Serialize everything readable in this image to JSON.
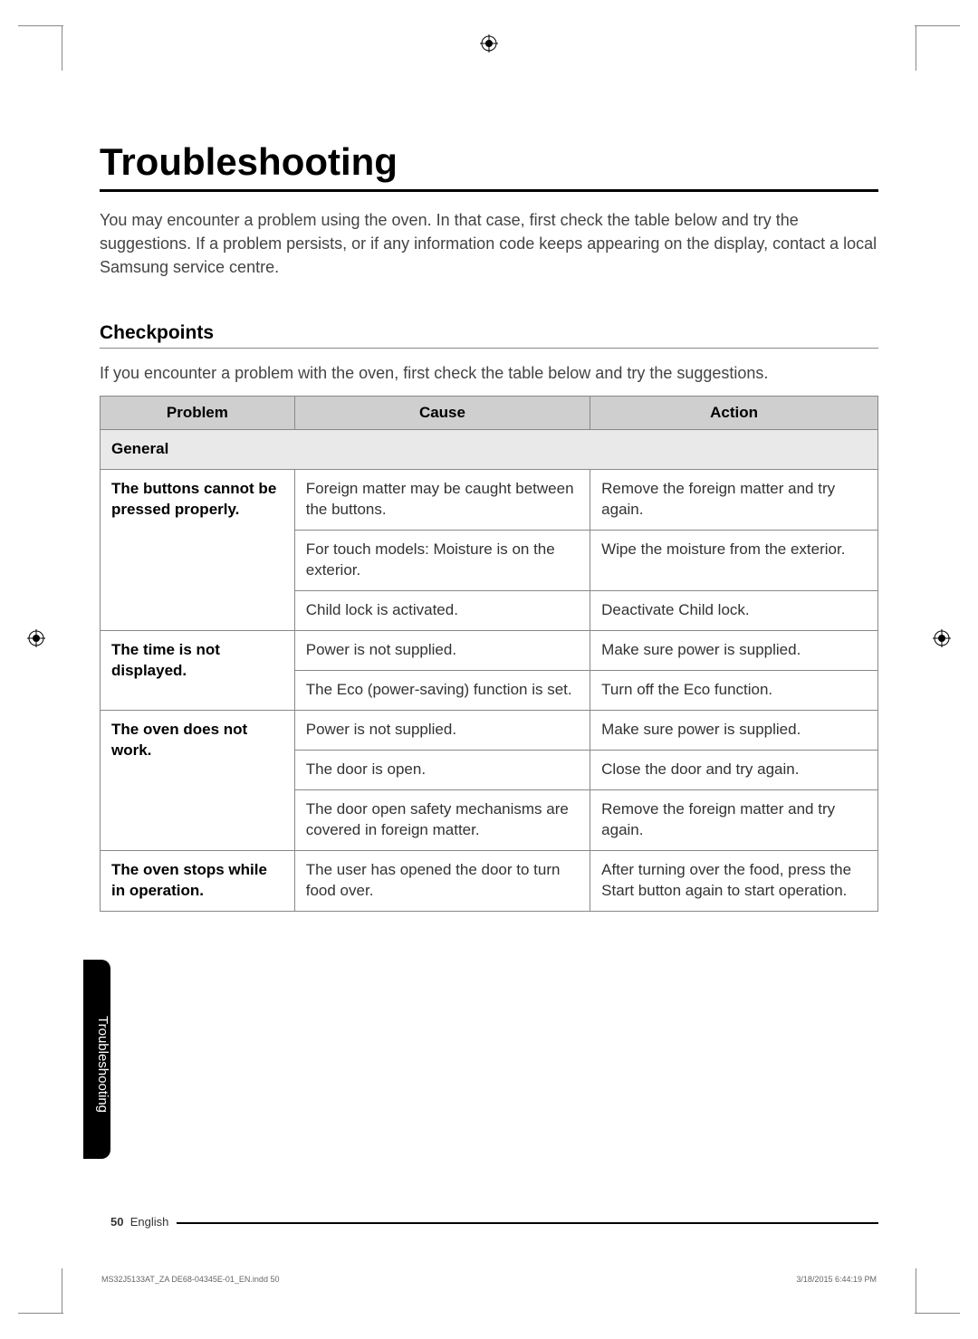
{
  "title": "Troubleshooting",
  "intro": "You may encounter a problem using the oven. In that case, first check the table below and try the suggestions. If a problem persists, or if any information code keeps appearing on the display, contact a local Samsung service centre.",
  "section_heading": "Checkpoints",
  "subintro": "If you encounter a problem with the oven, first check the table below and try the suggestions.",
  "table": {
    "columns": [
      "Problem",
      "Cause",
      "Action"
    ],
    "col_widths_pct": [
      25,
      38,
      37
    ],
    "header_bg": "#cfcfcf",
    "section_bg": "#e9e9e9",
    "border_color": "#888888",
    "body_rows": [
      {
        "type": "section",
        "label": "General"
      },
      {
        "type": "row",
        "problem": "The buttons cannot be pressed properly.",
        "problem_rowspan": 3,
        "cause": "Foreign matter may be caught between the buttons.",
        "action": "Remove the foreign matter and try again."
      },
      {
        "type": "row",
        "cause": "For touch models: Moisture is on the exterior.",
        "action": "Wipe the moisture from the exterior."
      },
      {
        "type": "row",
        "cause": "Child lock is activated.",
        "action": "Deactivate Child lock."
      },
      {
        "type": "row",
        "problem": "The time is not displayed.",
        "problem_rowspan": 2,
        "cause": "Power is not supplied.",
        "action": "Make sure power is supplied."
      },
      {
        "type": "row",
        "cause": "The Eco (power-saving) function is set.",
        "action": "Turn off the Eco function."
      },
      {
        "type": "row",
        "problem": "The oven does not work.",
        "problem_rowspan": 3,
        "cause": "Power is not supplied.",
        "action": "Make sure power is supplied."
      },
      {
        "type": "row",
        "cause": "The door is open.",
        "action": "Close the door and try again."
      },
      {
        "type": "row",
        "cause": "The door open safety mechanisms are covered in foreign matter.",
        "action": "Remove the foreign matter and try again."
      },
      {
        "type": "row",
        "problem": "The oven stops while in operation.",
        "problem_rowspan": 1,
        "cause": "The user has opened the door to turn food over.",
        "action": "After turning over the food, press the Start button again to start operation."
      }
    ]
  },
  "side_tab": "Troubleshooting",
  "page_number": "50",
  "page_lang": "English",
  "footer_left": "MS32J5133AT_ZA DE68-04345E-01_EN.indd   50",
  "footer_right": "3/18/2015   6:44:19 PM",
  "colors": {
    "text": "#333333",
    "heading": "#000000",
    "tab_bg": "#000000",
    "tab_text": "#ffffff"
  }
}
